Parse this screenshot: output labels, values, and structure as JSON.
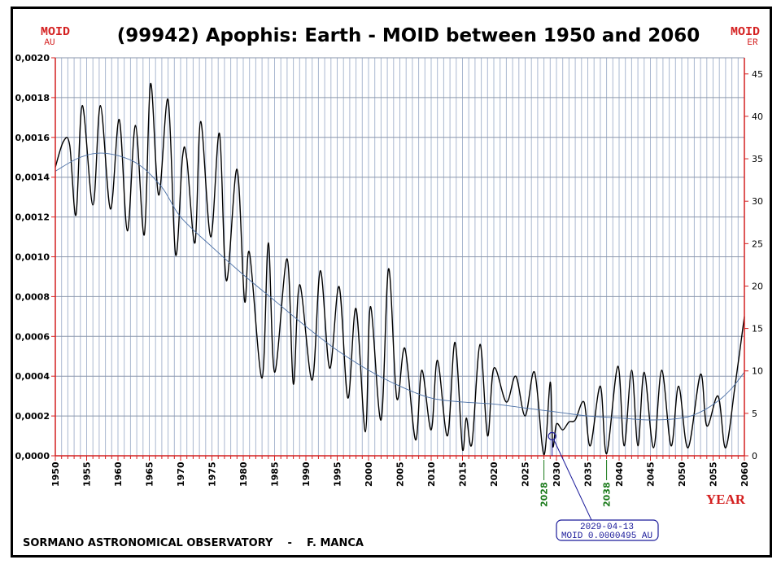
{
  "chart_data": {
    "type": "line",
    "title": "(99942) Apophis:   Earth - MOID between 1950 and 2060",
    "xlabel": "YEAR",
    "ylabel_left": {
      "title": "MOID",
      "unit": "AU"
    },
    "ylabel_right": {
      "title": "MOID",
      "unit": "ER"
    },
    "xlim": [
      1950,
      2060
    ],
    "ylim": [
      0,
      0.002
    ],
    "ylim_right": [
      0,
      46.9
    ],
    "grid": true,
    "x_ticks": [
      "1950",
      "1955",
      "1960",
      "1965",
      "1970",
      "1975",
      "1980",
      "1985",
      "1990",
      "1995",
      "2000",
      "2005",
      "2010",
      "2015",
      "2020",
      "2025",
      "2030",
      "2035",
      "2040",
      "2045",
      "2050",
      "2055",
      "2060"
    ],
    "y_ticks": [
      "0,0000",
      "0,0002",
      "0,0004",
      "0,0006",
      "0,0008",
      "0,0010",
      "0,0012",
      "0,0014",
      "0,0016",
      "0,0018",
      "0,0020"
    ],
    "y_ticks_right": [
      "0",
      "5",
      "10",
      "15",
      "20",
      "25",
      "30",
      "35",
      "40",
      "45"
    ],
    "highlight_years": [
      "2028",
      "2038"
    ],
    "series": [
      {
        "color": "#000000",
        "x": [
          1950,
          1951.3,
          1952.3,
          1953.3,
          1954.3,
          1956,
          1957.2,
          1958.8,
          1960.2,
          1961.5,
          1962.8,
          1964.2,
          1965.2,
          1966.5,
          1968,
          1969.2,
          1970.3,
          1971,
          1972.3,
          1973.2,
          1974.8,
          1976.2,
          1977.3,
          1979,
          1980.2,
          1981,
          1983,
          1984,
          1985,
          1987,
          1988,
          1989,
          1991,
          1992.3,
          1993.8,
          1995.3,
          1996.7,
          1998,
          1999.5,
          2000.3,
          2002,
          2003.2,
          2004.5,
          2005.8,
          2007.5,
          2008.5,
          2010,
          2011,
          2012.6,
          2013.8,
          2015,
          2015.6,
          2016.5,
          2017.8,
          2019,
          2020,
          2022,
          2023.5,
          2025,
          2026.5,
          2028,
          2029,
          2029.4,
          2030,
          2031,
          2032,
          2033,
          2034.4,
          2035.4,
          2037,
          2038,
          2039.8,
          2040.8,
          2042,
          2043,
          2044,
          2045.5,
          2046.8,
          2048.3,
          2049.5,
          2051,
          2053,
          2054,
          2055.8,
          2057,
          2058.5,
          2060
        ],
        "y": [
          0.00145,
          0.00158,
          0.00156,
          0.00121,
          0.00176,
          0.00126,
          0.00176,
          0.00124,
          0.00169,
          0.00113,
          0.00166,
          0.00111,
          0.00187,
          0.00131,
          0.00179,
          0.00101,
          0.0015,
          0.00149,
          0.00107,
          0.00168,
          0.0011,
          0.00162,
          0.00088,
          0.00144,
          0.00078,
          0.00102,
          0.00039,
          0.00107,
          0.00042,
          0.00099,
          0.00036,
          0.00086,
          0.00038,
          0.00093,
          0.00044,
          0.00085,
          0.00029,
          0.00074,
          0.00012,
          0.00075,
          0.00018,
          0.00094,
          0.00029,
          0.00054,
          8e-05,
          0.00043,
          0.00013,
          0.00048,
          0.0001,
          0.00057,
          3e-05,
          0.00019,
          6e-05,
          0.00056,
          0.0001,
          0.00044,
          0.00027,
          0.0004,
          0.0002,
          0.00042,
          5e-06,
          0.00037,
          5e-05,
          0.00016,
          0.00013,
          0.00017,
          0.00018,
          0.00027,
          5e-05,
          0.00035,
          1e-05,
          0.00045,
          5e-05,
          0.00043,
          5e-05,
          0.00042,
          4e-05,
          0.00043,
          5e-05,
          0.00035,
          4e-05,
          0.00041,
          0.00015,
          0.0003,
          4e-05,
          0.00035,
          0.0007
        ]
      },
      {
        "color": "#4a6fa5",
        "x": [
          1950,
          1954,
          1958,
          1963,
          1967,
          1970,
          1975,
          1980,
          1985,
          1990,
          1995,
          2000,
          2005,
          2010,
          2015,
          2020,
          2025,
          2030,
          2035,
          2040,
          2045,
          2050,
          2053,
          2056,
          2058,
          2060
        ],
        "y": [
          0.00143,
          0.0015,
          0.00152,
          0.00147,
          0.00135,
          0.0012,
          0.00105,
          0.00091,
          0.00078,
          0.00065,
          0.00053,
          0.00043,
          0.00035,
          0.00029,
          0.00027,
          0.00026,
          0.00024,
          0.00022,
          0.0002,
          0.00019,
          0.00018,
          0.00019,
          0.00022,
          0.00028,
          0.00034,
          0.00042
        ]
      }
    ],
    "annotation": {
      "date": "2029-04-13",
      "text": "MOID 0.0000495 AU",
      "x": 2029.3,
      "y": 4.95e-05
    }
  },
  "footer": "SORMANO ASTRONOMICAL OBSERVATORY    -    F. MANCA",
  "colors": {
    "axis": "#d42020",
    "grid": "#aab8d0",
    "highlight": "#1a7a1a",
    "annotation": "#1a1a9a"
  }
}
